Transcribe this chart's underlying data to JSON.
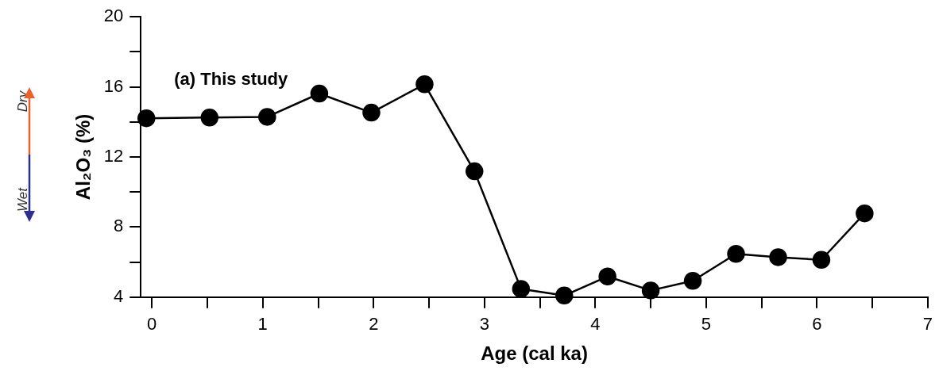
{
  "chart_data": {
    "type": "line",
    "xlabel": "Age (cal ka)",
    "ylabel": "Al₂O₃ (%)",
    "annotations": [
      "(a) This study",
      "Dry",
      "Wet"
    ],
    "x": [
      -0.05,
      0.52,
      1.04,
      1.51,
      1.98,
      2.46,
      2.91,
      3.33,
      3.72,
      4.11,
      4.5,
      4.88,
      5.27,
      5.65,
      6.04,
      6.43
    ],
    "series": [
      {
        "color": "#000000",
        "values": [
          14.21,
          14.25,
          14.29,
          15.62,
          14.53,
          16.15,
          11.18,
          4.47,
          4.09,
          5.18,
          4.38,
          4.93,
          6.47,
          6.28,
          6.13,
          8.78
        ]
      }
    ],
    "xlim": [
      -0.1,
      7
    ],
    "xticks": [
      0,
      {
        "value": 0.5,
        "label": null
      },
      1,
      {
        "value": 1.5,
        "label": null
      },
      2,
      {
        "value": 2.5,
        "label": null
      },
      3,
      {
        "value": 3.5,
        "label": null
      },
      4,
      {
        "value": 4.5,
        "label": null
      },
      5,
      {
        "value": 5.5,
        "label": null
      },
      6,
      {
        "value": 6.5,
        "label": null
      },
      7
    ],
    "ylim": [
      4,
      20
    ],
    "yticks": [
      4,
      {
        "value": 6,
        "label": null
      },
      8,
      {
        "value": 10,
        "label": null
      },
      12,
      {
        "value": 14,
        "label": null
      },
      16,
      {
        "value": 18,
        "label": null
      },
      20
    ],
    "marker": "circle",
    "line_style": "solid",
    "legend": false,
    "grid": false
  }
}
